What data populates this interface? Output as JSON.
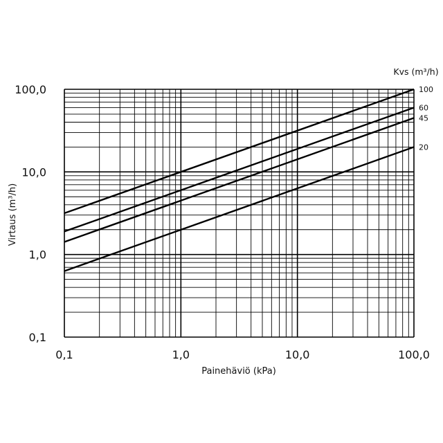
{
  "chart_data": {
    "type": "line",
    "title": "",
    "xlabel": "Painehäviö (kPa)",
    "ylabel": "Virtaus (m³/h)",
    "legend_title": "Kvs (m³/h)",
    "x_scale": "log",
    "y_scale": "log",
    "xlim": [
      0.1,
      100
    ],
    "ylim": [
      0.1,
      100
    ],
    "grid": true,
    "legend_placement": "right",
    "x_ticks": [
      {
        "value": 0.1,
        "label": "0,1"
      },
      {
        "value": 1,
        "label": "1,0"
      },
      {
        "value": 10,
        "label": "10,0"
      },
      {
        "value": 100,
        "label": "100,0"
      }
    ],
    "y_ticks": [
      {
        "value": 0.1,
        "label": "0,1"
      },
      {
        "value": 1,
        "label": "1,0"
      },
      {
        "value": 10,
        "label": "10,0"
      },
      {
        "value": 100,
        "label": "100,0"
      }
    ],
    "series": [
      {
        "name": "100",
        "kvs": 100,
        "x": [
          0.1,
          100
        ],
        "y": [
          3.16,
          100
        ]
      },
      {
        "name": "60",
        "kvs": 60,
        "x": [
          0.1,
          100
        ],
        "y": [
          1.9,
          60
        ]
      },
      {
        "name": "45",
        "kvs": 45,
        "x": [
          0.1,
          100
        ],
        "y": [
          1.42,
          45
        ]
      },
      {
        "name": "20",
        "kvs": 20,
        "x": [
          0.1,
          100
        ],
        "y": [
          0.63,
          20
        ]
      }
    ]
  }
}
